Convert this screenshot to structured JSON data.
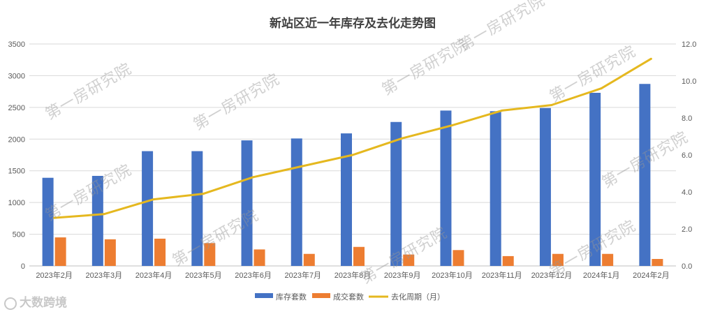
{
  "watermark": {
    "text": "第一房研究院"
  },
  "brand": {
    "text": "大数跨境"
  },
  "colors": {
    "inventory": "#4472C4",
    "sales": "#ED7D31",
    "cycle": "#E5B81F",
    "grid": "#D9D9D9",
    "text": "#595959"
  },
  "chart_data": {
    "type": "bar",
    "title": "新站区近一年库存及去化走势图",
    "categories": [
      "2023年2月",
      "2023年3月",
      "2023年4月",
      "2023年5月",
      "2023年6月",
      "2023年7月",
      "2023年8月",
      "2023年9月",
      "2023年10月",
      "2023年11月",
      "2023年12月",
      "2024年1月",
      "2024年2月"
    ],
    "series": [
      {
        "name": "库存套数",
        "type": "bar",
        "axis": "left",
        "values": [
          1390,
          1420,
          1810,
          1810,
          1980,
          2010,
          2090,
          2270,
          2450,
          2440,
          2490,
          2730,
          2870
        ]
      },
      {
        "name": "成交套数",
        "type": "bar",
        "axis": "left",
        "values": [
          450,
          420,
          430,
          360,
          260,
          190,
          300,
          180,
          250,
          155,
          190,
          190,
          110
        ]
      },
      {
        "name": "去化周期（月）",
        "type": "line",
        "axis": "right",
        "values": [
          2.6,
          2.8,
          3.6,
          3.9,
          4.8,
          5.4,
          6.0,
          6.9,
          7.6,
          8.4,
          8.7,
          9.6,
          11.2
        ]
      }
    ],
    "yleft": {
      "min": 0,
      "max": 3500,
      "ticks": [
        "0",
        "500",
        "1000",
        "1500",
        "2000",
        "2500",
        "3000",
        "3500"
      ]
    },
    "yright": {
      "min": 0,
      "max": 12,
      "ticks": [
        "0.0",
        "2.0",
        "4.0",
        "6.0",
        "8.0",
        "10.0",
        "12.0"
      ]
    },
    "grid": true,
    "legend_position": "bottom"
  }
}
